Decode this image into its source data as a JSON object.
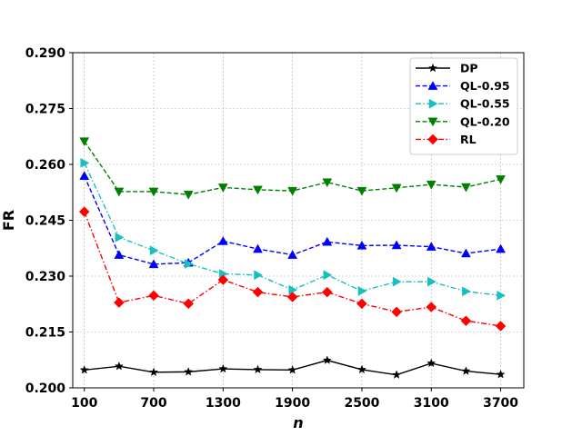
{
  "chart_data": {
    "type": "line",
    "xlabel": "n",
    "ylabel": "FR",
    "xlim": [
      0,
      3900
    ],
    "ylim": [
      0.2,
      0.29
    ],
    "x_ticks": [
      100,
      700,
      1300,
      1900,
      2500,
      3100,
      3700
    ],
    "x_tick_labels": [
      "100",
      "700",
      "1300",
      "1900",
      "2500",
      "3100",
      "3700"
    ],
    "y_ticks": [
      0.2,
      0.215,
      0.23,
      0.245,
      0.26,
      0.275,
      0.29
    ],
    "y_tick_labels": [
      "0.200",
      "0.215",
      "0.230",
      "0.245",
      "0.260",
      "0.275",
      "0.290"
    ],
    "grid": true,
    "legend_position": "top-right",
    "x": [
      100,
      400,
      700,
      1000,
      1300,
      1600,
      1900,
      2200,
      2500,
      2800,
      3100,
      3400,
      3700
    ],
    "series": [
      {
        "name": "DP",
        "color": "#000000",
        "marker": "star",
        "dash": "solid",
        "values": [
          0.2048,
          0.2058,
          0.2042,
          0.2043,
          0.2051,
          0.2049,
          0.2048,
          0.2074,
          0.2049,
          0.2035,
          0.2066,
          0.2045,
          0.2036
        ]
      },
      {
        "name": "QL-0.95",
        "color": "#0000ff",
        "marker": "triangle-up",
        "dash": "dashed",
        "values": [
          0.2569,
          0.2357,
          0.2332,
          0.2336,
          0.2394,
          0.2373,
          0.2357,
          0.2392,
          0.2382,
          0.2383,
          0.2379,
          0.2361,
          0.2373
        ]
      },
      {
        "name": "QL-0.55",
        "color": "#17bfbf",
        "marker": "triangle-right",
        "dash": "dashdot",
        "values": [
          0.2604,
          0.2404,
          0.2369,
          0.2333,
          0.2306,
          0.2303,
          0.2263,
          0.2303,
          0.226,
          0.2285,
          0.2285,
          0.2259,
          0.2248
        ]
      },
      {
        "name": "QL-0.20",
        "color": "#008000",
        "marker": "triangle-down",
        "dash": "dashed",
        "values": [
          0.2662,
          0.2527,
          0.2527,
          0.2519,
          0.2538,
          0.2532,
          0.2529,
          0.2552,
          0.2529,
          0.2537,
          0.2546,
          0.2539,
          0.256
        ]
      },
      {
        "name": "RL",
        "color": "#ff0000",
        "marker": "diamond",
        "dash": "dashdot",
        "values": [
          0.2473,
          0.2229,
          0.2248,
          0.2226,
          0.229,
          0.2257,
          0.2244,
          0.2257,
          0.2226,
          0.2204,
          0.2217,
          0.218,
          0.2166
        ]
      }
    ]
  }
}
